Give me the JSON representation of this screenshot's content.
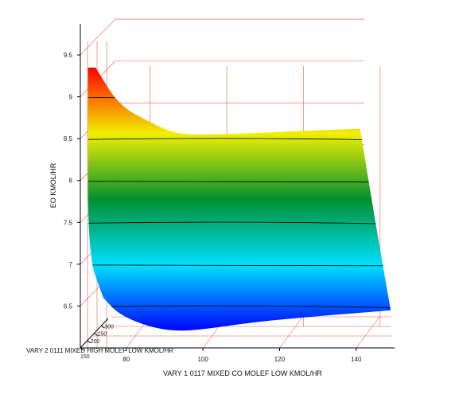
{
  "chart_data": {
    "type": "surface",
    "xlabel": "VARY 1 0117 MIXED CO MOLEF LOW KMOL/HR",
    "ylabel": "EO KMOL/HR",
    "zlabel": "VARY 2 0111 MIXED HIGH MOLEF LOW KMOL/HR",
    "x_ticks": [
      80,
      100,
      120,
      140
    ],
    "y_ticks": [
      6.5,
      7,
      7.5,
      8,
      8.5,
      9,
      9.5
    ],
    "z_ticks": [
      150,
      200,
      250,
      300
    ],
    "xlim": [
      68,
      150
    ],
    "ylim": [
      6.0,
      9.9
    ],
    "zlim": [
      150,
      350
    ],
    "grid": true,
    "colormap": [
      "#0000ff",
      "#00e0ff",
      "#009030",
      "#f0f000",
      "#ff0000"
    ],
    "color_range": [
      6.2,
      9.35
    ],
    "contour_levels": [
      6.5,
      7.0,
      7.5,
      8.0,
      8.5,
      9.0
    ],
    "surface_edges": {
      "left": {
        "x": [
          70,
          70,
          70,
          71,
          72,
          74
        ],
        "y": [
          9.35,
          8.5,
          7.5,
          7.0,
          6.85,
          6.6
        ]
      },
      "top": {
        "x": [
          72,
          78,
          86,
          93,
          104,
          120,
          141
        ],
        "y": [
          9.35,
          8.9,
          8.7,
          8.55,
          8.55,
          8.58,
          8.62
        ]
      },
      "right": {
        "x": [
          141,
          145,
          149
        ],
        "y": [
          8.62,
          7.5,
          6.45
        ]
      },
      "bottom": {
        "x": [
          74,
          78,
          86,
          93,
          100,
          112,
          125,
          149
        ],
        "y": [
          6.6,
          6.4,
          6.25,
          6.2,
          6.22,
          6.3,
          6.36,
          6.45
        ]
      }
    }
  }
}
